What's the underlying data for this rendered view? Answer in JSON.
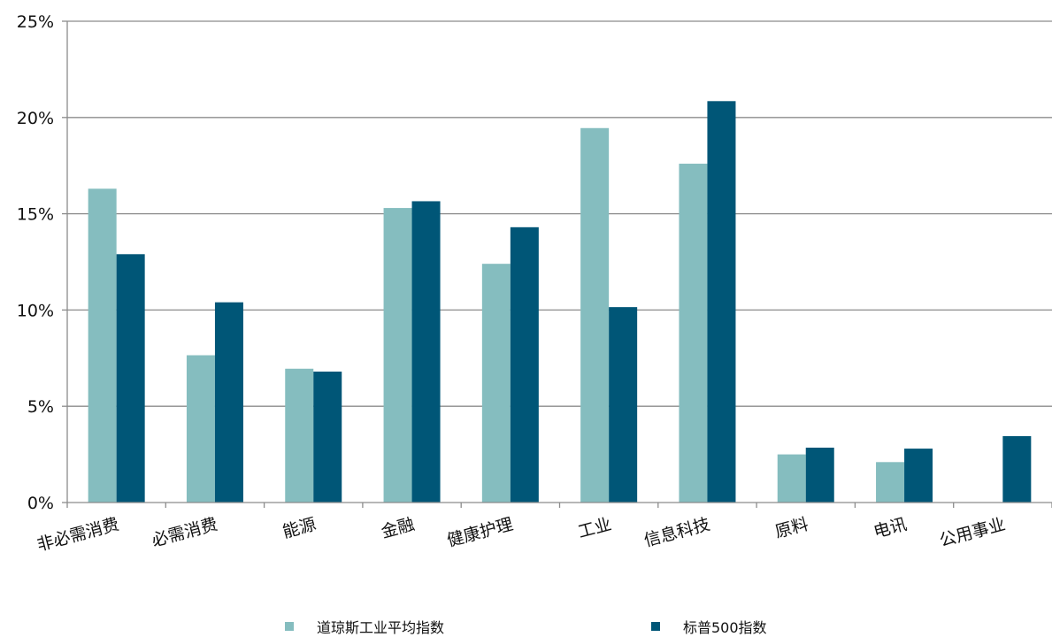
{
  "chart_data": {
    "type": "bar",
    "categories": [
      "非必需消费",
      "必需消费",
      "能源",
      "金融",
      "健康护理",
      "工业",
      "信息科技",
      "原料",
      "电讯",
      "公用事业"
    ],
    "series": [
      {
        "name": "道琼斯工业平均指数",
        "color": "#85bdbf",
        "values": [
          16.3,
          7.65,
          6.95,
          15.3,
          12.4,
          19.45,
          17.6,
          2.5,
          2.1,
          0
        ]
      },
      {
        "name": "标普500指数",
        "color": "#005677",
        "values": [
          12.9,
          10.4,
          6.8,
          15.65,
          14.3,
          10.15,
          20.85,
          2.85,
          2.8,
          3.45
        ]
      }
    ],
    "yticks": [
      "0%",
      "5%",
      "10%",
      "15%",
      "20%",
      "25%"
    ],
    "ylim": [
      0,
      25
    ],
    "grid": true,
    "legend_position": "bottom"
  }
}
